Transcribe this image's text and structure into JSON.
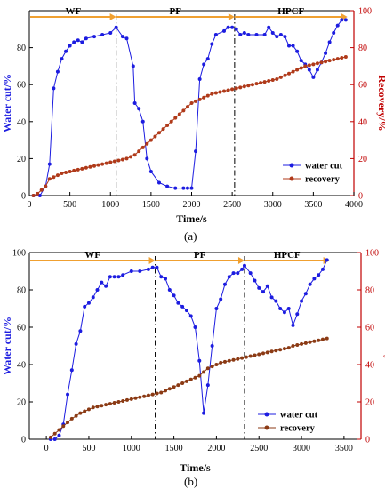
{
  "chart_data": [
    {
      "id": "a",
      "type": "line",
      "caption": "(a)",
      "xlabel": "Time/s",
      "ylabel_left": "Water cut/%",
      "ylabel_right": "Recovery/%",
      "xlim": [
        0,
        4000
      ],
      "ylim_left": [
        0,
        100
      ],
      "ylim_right": [
        0,
        100
      ],
      "xticks": [
        0,
        500,
        1000,
        1500,
        2000,
        2500,
        3000,
        3500,
        4000
      ],
      "yticks_left": [
        0,
        20,
        40,
        60,
        80
      ],
      "yticks_right": [
        0,
        20,
        40,
        60,
        80,
        100
      ],
      "grid": false,
      "legend_position": "bottom-right",
      "phases": [
        {
          "label": "WF",
          "x_start": 0,
          "x_end": 1070
        },
        {
          "label": "PF",
          "x_start": 1070,
          "x_end": 2530
        },
        {
          "label": "HPCF",
          "x_start": 2530,
          "x_end": 3920
        }
      ],
      "phase_lines": [
        1070,
        2530
      ],
      "series": [
        {
          "name": "water cut",
          "axis": "left",
          "color": "#1c1ce0",
          "marker": "circle",
          "x": [
            50,
            130,
            200,
            250,
            300,
            350,
            400,
            450,
            500,
            550,
            600,
            650,
            700,
            800,
            900,
            1000,
            1070,
            1150,
            1200,
            1280,
            1300,
            1350,
            1400,
            1450,
            1500,
            1600,
            1700,
            1800,
            1900,
            1950,
            2000,
            2050,
            2100,
            2150,
            2200,
            2250,
            2300,
            2400,
            2450,
            2500,
            2550,
            2600,
            2650,
            2700,
            2800,
            2900,
            2950,
            3000,
            3050,
            3100,
            3150,
            3200,
            3250,
            3300,
            3350,
            3400,
            3450,
            3500,
            3550,
            3600,
            3650,
            3700,
            3750,
            3800,
            3850,
            3900
          ],
          "values": [
            0,
            0,
            5,
            17,
            58,
            67,
            74,
            78,
            81,
            83,
            84,
            83,
            85,
            86,
            87,
            88,
            91,
            86,
            85,
            70,
            50,
            47,
            40,
            20,
            13,
            7,
            5,
            4,
            4,
            4,
            4,
            24,
            63,
            71,
            74,
            82,
            87,
            89,
            91,
            91,
            90,
            87,
            88,
            87,
            87,
            87,
            91,
            88,
            86,
            87,
            86,
            81,
            81,
            78,
            73,
            71,
            68,
            64,
            68,
            72,
            77,
            83,
            88,
            92,
            95,
            95
          ]
        },
        {
          "name": "recovery",
          "axis": "right",
          "color": "#b03a1a",
          "marker": "circle",
          "x": [
            50,
            100,
            150,
            200,
            250,
            300,
            350,
            400,
            450,
            500,
            550,
            600,
            650,
            700,
            750,
            800,
            850,
            900,
            950,
            1000,
            1050,
            1100,
            1150,
            1200,
            1250,
            1300,
            1350,
            1400,
            1450,
            1500,
            1550,
            1600,
            1650,
            1700,
            1750,
            1800,
            1850,
            1900,
            1950,
            2000,
            2050,
            2100,
            2150,
            2200,
            2250,
            2300,
            2350,
            2400,
            2450,
            2500,
            2550,
            2600,
            2650,
            2700,
            2750,
            2800,
            2850,
            2900,
            2950,
            3000,
            3050,
            3100,
            3150,
            3200,
            3250,
            3300,
            3350,
            3400,
            3450,
            3500,
            3550,
            3600,
            3650,
            3700,
            3750,
            3800,
            3850,
            3900
          ],
          "values": [
            0,
            1,
            3,
            5,
            9,
            10,
            11,
            12,
            12.5,
            13,
            13.5,
            14,
            14.5,
            15,
            15.5,
            16,
            16.5,
            17,
            17.5,
            18,
            18.5,
            19,
            19.5,
            20,
            21,
            22,
            24,
            26,
            28,
            30,
            32,
            34,
            36,
            38,
            40,
            42,
            44,
            46,
            48,
            50,
            51,
            52,
            53,
            54,
            55,
            55.5,
            56,
            56.5,
            57,
            57.5,
            58,
            58.5,
            59,
            59.5,
            60,
            60.5,
            61,
            61.5,
            62,
            62.5,
            63,
            64,
            65,
            66,
            67,
            68,
            69,
            70,
            70.5,
            71,
            71.5,
            72,
            72.5,
            73,
            73.5,
            74,
            74.5,
            75
          ]
        }
      ]
    },
    {
      "id": "b",
      "type": "line",
      "caption": "(b)",
      "xlabel": "Time/s",
      "ylabel_left": "Water cut/%",
      "ylabel_right": "Recovery/%",
      "xlim": [
        -200,
        3700
      ],
      "ylim_left": [
        0,
        100
      ],
      "ylim_right": [
        0,
        100
      ],
      "xticks": [
        0,
        500,
        1000,
        1500,
        2000,
        2500,
        3000,
        3500
      ],
      "yticks_left": [
        0,
        20,
        40,
        60,
        80,
        100
      ],
      "yticks_right": [
        0,
        20,
        40,
        60,
        80,
        100
      ],
      "grid": false,
      "legend_position": "bottom-right",
      "phases": [
        {
          "label": "WF",
          "x_start": -200,
          "x_end": 1280
        },
        {
          "label": "PF",
          "x_start": 1280,
          "x_end": 2330
        },
        {
          "label": "HPCF",
          "x_start": 2330,
          "x_end": 3330
        }
      ],
      "phase_lines": [
        1280,
        2330
      ],
      "series": [
        {
          "name": "water cut",
          "axis": "left",
          "color": "#1c1ce0",
          "marker": "circle",
          "x": [
            50,
            100,
            150,
            200,
            250,
            300,
            350,
            400,
            450,
            500,
            550,
            600,
            650,
            700,
            750,
            800,
            850,
            900,
            1000,
            1100,
            1200,
            1250,
            1300,
            1350,
            1400,
            1450,
            1500,
            1550,
            1600,
            1650,
            1700,
            1750,
            1800,
            1850,
            1900,
            1950,
            2000,
            2050,
            2100,
            2150,
            2200,
            2250,
            2300,
            2330,
            2400,
            2450,
            2500,
            2550,
            2600,
            2650,
            2700,
            2750,
            2800,
            2850,
            2900,
            2950,
            3000,
            3050,
            3100,
            3150,
            3200,
            3250,
            3300
          ],
          "values": [
            0,
            0,
            2,
            8,
            24,
            37,
            51,
            58,
            71,
            73,
            76,
            80,
            84,
            82,
            87,
            87,
            87,
            88,
            90,
            90,
            91,
            92,
            92,
            87,
            86,
            80,
            77,
            73,
            71,
            69,
            66,
            60,
            42,
            14,
            29,
            50,
            70,
            75,
            83,
            87,
            89,
            89,
            91,
            93,
            89,
            85,
            81,
            79,
            82,
            76,
            74,
            70,
            68,
            70,
            61,
            67,
            74,
            78,
            83,
            86,
            88,
            91,
            96
          ]
        },
        {
          "name": "recovery",
          "axis": "right",
          "color": "#8b3a14",
          "marker": "circle",
          "x": [
            50,
            100,
            150,
            200,
            250,
            300,
            350,
            400,
            450,
            500,
            550,
            600,
            650,
            700,
            750,
            800,
            850,
            900,
            950,
            1000,
            1050,
            1100,
            1150,
            1200,
            1250,
            1300,
            1350,
            1400,
            1450,
            1500,
            1550,
            1600,
            1650,
            1700,
            1750,
            1800,
            1850,
            1900,
            1950,
            2000,
            2050,
            2100,
            2150,
            2200,
            2250,
            2300,
            2350,
            2400,
            2450,
            2500,
            2550,
            2600,
            2650,
            2700,
            2750,
            2800,
            2850,
            2900,
            2950,
            3000,
            3050,
            3100,
            3150,
            3200,
            3250,
            3300
          ],
          "values": [
            1,
            3,
            5,
            7,
            9,
            11,
            12.5,
            14,
            15,
            16,
            17,
            17.5,
            18,
            18.5,
            19,
            19.5,
            20,
            20.5,
            21,
            21.5,
            22,
            22.5,
            23,
            23.5,
            24,
            24.5,
            25,
            26,
            27,
            28,
            29,
            30,
            31,
            32,
            33,
            34,
            36,
            38,
            39,
            40,
            41,
            41.5,
            42,
            42.5,
            43,
            43.5,
            44,
            44.5,
            45,
            45.5,
            46,
            46.5,
            47,
            47.5,
            48,
            48.5,
            49,
            50,
            50.5,
            51,
            51.5,
            52,
            52.5,
            53,
            53.5,
            54
          ]
        }
      ]
    }
  ]
}
